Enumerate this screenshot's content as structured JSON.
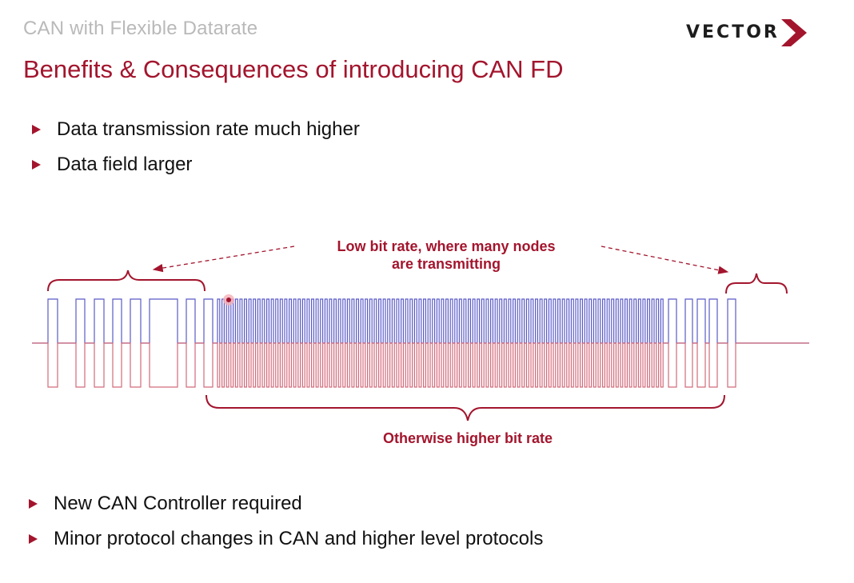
{
  "header": {
    "subtitle": "CAN with Flexible Datarate",
    "title": "Benefits & Consequences of introducing CAN FD",
    "logo_text": "VECTOR"
  },
  "bullets_top": [
    "Data transmission rate much higher",
    "Data field larger"
  ],
  "diagram": {
    "annotation_low_line1": "Low bit rate, where many nodes",
    "annotation_low_line2": "are transmitting",
    "annotation_high": "Otherwise higher bit rate"
  },
  "bullets_bottom": [
    "New CAN Controller required",
    "Minor protocol changes in CAN and higher level protocols"
  ],
  "colors": {
    "accent": "#a3152d",
    "signal_high": "#5a5ac8",
    "signal_low": "#d26a7a"
  }
}
